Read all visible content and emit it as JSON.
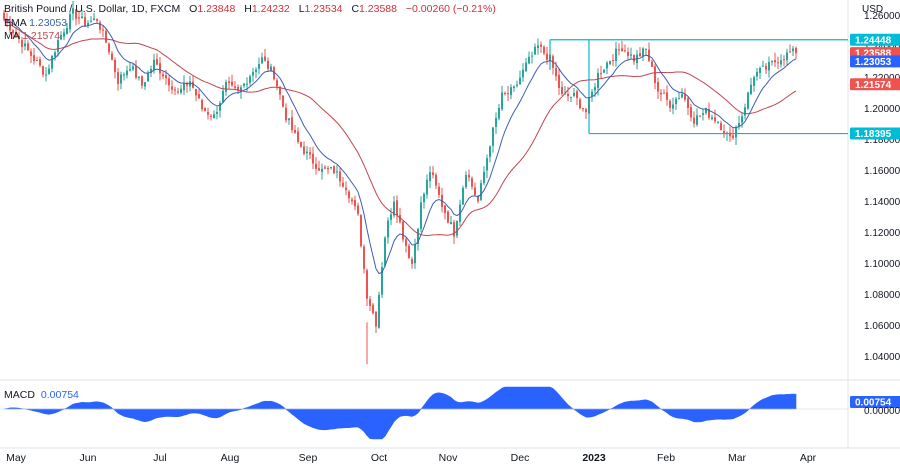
{
  "header": {
    "symbol": "British Pound / U.S. Dollar, 1D, FXCM",
    "open_label": "O",
    "open": "1.23848",
    "high_label": "H",
    "high": "1.24232",
    "low_label": "L",
    "low": "1.23534",
    "close_label": "C",
    "close": "1.23588",
    "change": "−0.00260 (−0.21%)",
    "ema_label": "EMA",
    "ema_value": "1.23053",
    "ma_label": "MA",
    "ma_value": "1.21574"
  },
  "macd": {
    "label": "MACD",
    "value": "0.00754"
  },
  "colors": {
    "up": "#26a69a",
    "down": "#ef5350",
    "ema": "#3d5fb0",
    "ma": "#c2454f",
    "macd_fill": "#2962ff",
    "box": "#00bcd4"
  },
  "chart_data": {
    "type": "candlestick",
    "currency_label": "USD",
    "y_ticks": [
      "1.26000",
      "1.24000",
      "1.22000",
      "1.20000",
      "1.18000",
      "1.16000",
      "1.14000",
      "1.12000",
      "1.10000",
      "1.08000",
      "1.06000",
      "1.04000"
    ],
    "ylim": [
      1.03,
      1.265
    ],
    "x_ticks": [
      "May",
      "Jun",
      "Jul",
      "Aug",
      "Sep",
      "Oct",
      "Nov",
      "Dec",
      "2023",
      "Feb",
      "Mar",
      "Apr"
    ],
    "price_labels": [
      {
        "text": "1.24448",
        "value": 1.24448,
        "color": "#00bcd4"
      },
      {
        "text": "1.23588",
        "value": 1.23588,
        "color": "#ef5350"
      },
      {
        "text": "1.23053",
        "value": 1.23053,
        "color": "#2962ff"
      },
      {
        "text": "1.21574",
        "value": 1.21574,
        "color": "#ef5350"
      },
      {
        "text": "1.18395",
        "value": 1.18395,
        "color": "#00bcd4"
      }
    ],
    "range_box": {
      "top": 1.24448,
      "bottom": 1.18395,
      "start_day": 195,
      "end_day": 332
    },
    "anchors": [
      [
        0,
        1.258
      ],
      [
        5,
        1.245
      ],
      [
        10,
        1.232
      ],
      [
        14,
        1.222
      ],
      [
        18,
        1.244
      ],
      [
        23,
        1.262
      ],
      [
        27,
        1.255
      ],
      [
        31,
        1.258
      ],
      [
        35,
        1.238
      ],
      [
        38,
        1.218
      ],
      [
        42,
        1.228
      ],
      [
        46,
        1.215
      ],
      [
        50,
        1.23
      ],
      [
        54,
        1.22
      ],
      [
        58,
        1.21
      ],
      [
        62,
        1.218
      ],
      [
        66,
        1.2
      ],
      [
        70,
        1.195
      ],
      [
        74,
        1.215
      ],
      [
        78,
        1.21
      ],
      [
        82,
        1.222
      ],
      [
        86,
        1.232
      ],
      [
        90,
        1.222
      ],
      [
        94,
        1.195
      ],
      [
        98,
        1.178
      ],
      [
        102,
        1.168
      ],
      [
        106,
        1.16
      ],
      [
        110,
        1.16
      ],
      [
        114,
        1.15
      ],
      [
        118,
        1.13
      ],
      [
        121,
        1.08
      ],
      [
        124,
        1.062
      ],
      [
        127,
        1.118
      ],
      [
        130,
        1.142
      ],
      [
        133,
        1.118
      ],
      [
        136,
        1.1
      ],
      [
        139,
        1.138
      ],
      [
        142,
        1.16
      ],
      [
        146,
        1.138
      ],
      [
        150,
        1.12
      ],
      [
        154,
        1.16
      ],
      [
        158,
        1.14
      ],
      [
        162,
        1.178
      ],
      [
        166,
        1.208
      ],
      [
        170,
        1.212
      ],
      [
        174,
        1.228
      ],
      [
        178,
        1.24
      ],
      [
        182,
        1.232
      ],
      [
        186,
        1.208
      ],
      [
        190,
        1.208
      ],
      [
        194,
        1.198
      ],
      [
        198,
        1.222
      ],
      [
        202,
        1.232
      ],
      [
        206,
        1.24
      ],
      [
        210,
        1.232
      ],
      [
        214,
        1.238
      ],
      [
        218,
        1.212
      ],
      [
        222,
        1.203
      ],
      [
        226,
        1.21
      ],
      [
        230,
        1.193
      ],
      [
        234,
        1.198
      ],
      [
        238,
        1.192
      ],
      [
        242,
        1.18
      ],
      [
        246,
        1.196
      ],
      [
        250,
        1.222
      ],
      [
        254,
        1.226
      ],
      [
        258,
        1.232
      ],
      [
        262,
        1.236
      ]
    ],
    "ema_last": 1.23053,
    "ma_last": 1.21574,
    "macd_last": 0.00754
  }
}
